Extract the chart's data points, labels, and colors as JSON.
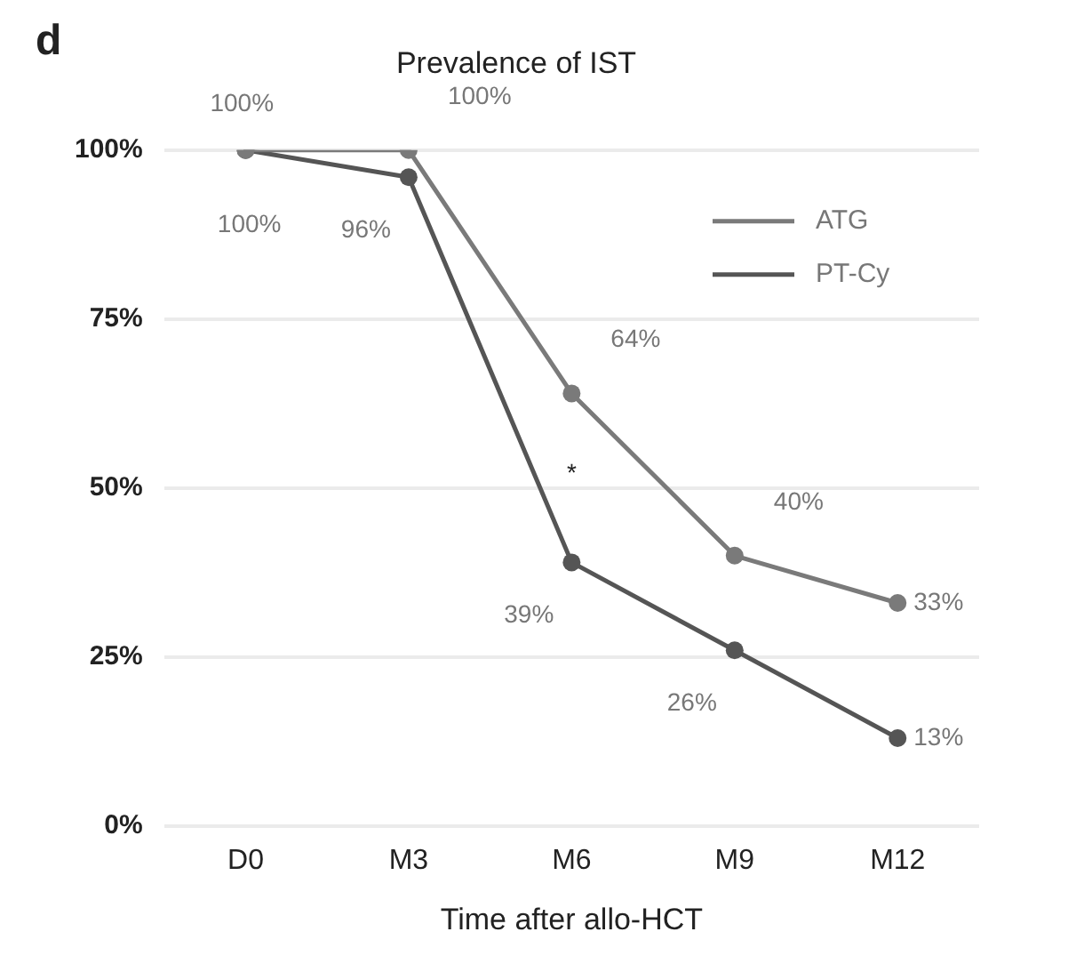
{
  "chart_data": {
    "type": "line",
    "title": "Prevalence of IST",
    "xlabel": "Time after allo-HCT",
    "categories": [
      "D0",
      "M3",
      "M6",
      "M9",
      "M12"
    ],
    "series": [
      {
        "name": "ATG",
        "color": "#7a7a7a",
        "values": [
          100,
          100,
          64,
          40,
          33
        ],
        "value_labels": [
          "100%",
          "100%",
          "64%",
          "40%",
          "33%"
        ]
      },
      {
        "name": "PT-Cy",
        "color": "#555555",
        "values": [
          100,
          96,
          39,
          26,
          13
        ],
        "value_labels": [
          "100%",
          "96%",
          "39%",
          "26%",
          "13%"
        ]
      }
    ],
    "ylim": [
      0,
      100
    ],
    "yticks": [
      {
        "value": 0,
        "label": "0%"
      },
      {
        "value": 25,
        "label": "25%"
      },
      {
        "value": 50,
        "label": "50%"
      },
      {
        "value": 75,
        "label": "75%"
      },
      {
        "value": 100,
        "label": "100%"
      }
    ],
    "grid": "y",
    "legend": "top right",
    "marker": "circle",
    "line_style": "solid",
    "annotations": [
      "d",
      "*"
    ]
  }
}
